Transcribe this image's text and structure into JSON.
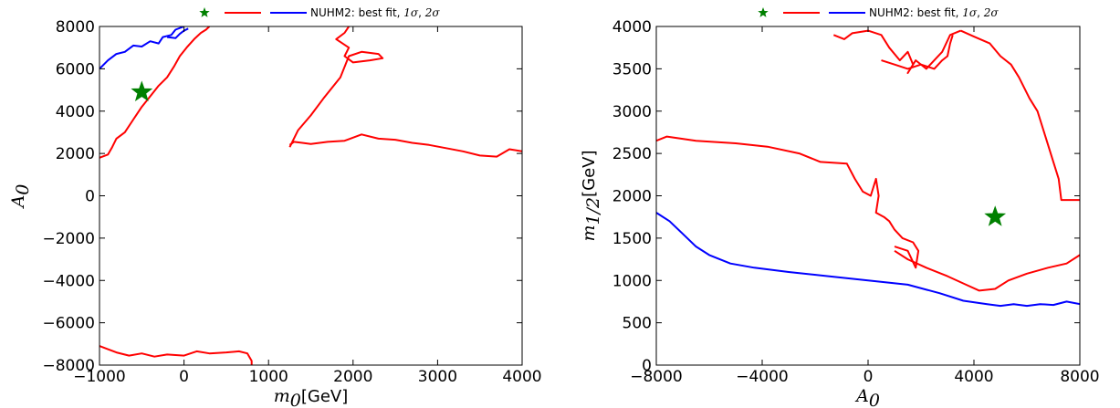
{
  "chart_data": [
    {
      "type": "line",
      "legend": {
        "label": "NUHM2: best fit, ",
        "sig1": "1σ",
        "sep": ", ",
        "sig2": "2σ",
        "placement": "top-center"
      },
      "xlabel": {
        "symbol": "m",
        "sub": "0",
        "unit": "[GeV]"
      },
      "ylabel": {
        "symbol": "A",
        "sub": "0"
      },
      "xlim": [
        -1000,
        4000
      ],
      "ylim": [
        -8000,
        8000
      ],
      "xticks": [
        -1000,
        0,
        1000,
        2000,
        3000,
        4000
      ],
      "yticks": [
        -8000,
        -6000,
        -4000,
        -2000,
        0,
        2000,
        4000,
        6000,
        8000
      ],
      "grid": false,
      "best_fit": {
        "x": -500,
        "y": 4900,
        "color": "#008000"
      },
      "series": [
        {
          "color": "#ff0000",
          "points": [
            [
              -1000,
              1800
            ],
            [
              -900,
              1950
            ],
            [
              -850,
              2300
            ],
            [
              -800,
              2700
            ],
            [
              -700,
              3000
            ],
            [
              -600,
              3600
            ],
            [
              -500,
              4200
            ],
            [
              -400,
              4700
            ],
            [
              -300,
              5200
            ],
            [
              -200,
              5600
            ],
            [
              -120,
              6100
            ],
            [
              -50,
              6600
            ],
            [
              30,
              7000
            ],
            [
              120,
              7400
            ],
            [
              200,
              7700
            ],
            [
              260,
              7850
            ],
            [
              300,
              8000
            ]
          ]
        },
        {
          "color": "#ff0000",
          "points": [
            [
              1250,
              2400
            ],
            [
              1300,
              2550
            ],
            [
              1400,
              2500
            ],
            [
              1500,
              2450
            ],
            [
              1700,
              2550
            ],
            [
              1900,
              2600
            ],
            [
              2100,
              2900
            ],
            [
              2300,
              2700
            ],
            [
              2500,
              2650
            ],
            [
              2700,
              2500
            ],
            [
              2900,
              2400
            ],
            [
              3100,
              2250
            ],
            [
              3300,
              2100
            ],
            [
              3500,
              1900
            ],
            [
              3700,
              1850
            ],
            [
              3850,
              2200
            ],
            [
              4000,
              2100
            ]
          ]
        },
        {
          "color": "#ff0000",
          "points": [
            [
              1250,
              2300
            ],
            [
              1350,
              3100
            ],
            [
              1500,
              3800
            ],
            [
              1650,
              4600
            ],
            [
              1850,
              5600
            ],
            [
              1950,
              6600
            ],
            [
              2100,
              6800
            ],
            [
              2300,
              6700
            ],
            [
              2350,
              6500
            ],
            [
              2200,
              6400
            ],
            [
              2000,
              6300
            ],
            [
              1900,
              6600
            ],
            [
              1950,
              7000
            ],
            [
              1800,
              7400
            ],
            [
              1900,
              7700
            ],
            [
              1950,
              8000
            ]
          ]
        },
        {
          "color": "#ff0000",
          "points": [
            [
              -1000,
              -7100
            ],
            [
              -800,
              -7400
            ],
            [
              -650,
              -7550
            ],
            [
              -500,
              -7450
            ],
            [
              -350,
              -7600
            ],
            [
              -200,
              -7500
            ],
            [
              0,
              -7550
            ],
            [
              150,
              -7350
            ],
            [
              300,
              -7450
            ],
            [
              500,
              -7400
            ],
            [
              650,
              -7350
            ],
            [
              750,
              -7450
            ],
            [
              800,
              -7800
            ],
            [
              800,
              -8000
            ]
          ]
        },
        {
          "color": "#0000ff",
          "points": [
            [
              -1000,
              6000
            ],
            [
              -900,
              6400
            ],
            [
              -800,
              6700
            ],
            [
              -700,
              6800
            ],
            [
              -600,
              7100
            ],
            [
              -500,
              7050
            ],
            [
              -400,
              7300
            ],
            [
              -300,
              7200
            ],
            [
              -250,
              7500
            ],
            [
              -150,
              7600
            ],
            [
              -100,
              7850
            ],
            [
              0,
              8000
            ]
          ]
        },
        {
          "color": "#0000ff",
          "points": [
            [
              -200,
              7500
            ],
            [
              -100,
              7450
            ],
            [
              -50,
              7650
            ],
            [
              0,
              7800
            ],
            [
              50,
              7900
            ]
          ]
        }
      ]
    },
    {
      "type": "line",
      "legend": {
        "label": "NUHM2: best fit, ",
        "sig1": "1σ",
        "sep": ", ",
        "sig2": "2σ",
        "placement": "top-center"
      },
      "xlabel": {
        "symbol": "A",
        "sub": "0",
        "unit": ""
      },
      "ylabel": {
        "symbol": "m",
        "sub": "1/2",
        "unit": "[GeV]"
      },
      "xlim": [
        -8000,
        8000
      ],
      "ylim": [
        0,
        4000
      ],
      "xticks": [
        -8000,
        -4000,
        0,
        4000,
        8000
      ],
      "yticks": [
        0,
        500,
        1000,
        1500,
        2000,
        2500,
        3000,
        3500,
        4000
      ],
      "grid": false,
      "best_fit": {
        "x": 4800,
        "y": 1750,
        "color": "#008000"
      },
      "series": [
        {
          "color": "#ff0000",
          "points": [
            [
              -8000,
              2650
            ],
            [
              -7600,
              2700
            ],
            [
              -6500,
              2650
            ],
            [
              -5000,
              2620
            ],
            [
              -3800,
              2580
            ],
            [
              -2600,
              2500
            ],
            [
              -1800,
              2400
            ],
            [
              -800,
              2380
            ],
            [
              -500,
              2200
            ],
            [
              -200,
              2050
            ],
            [
              100,
              2000
            ],
            [
              300,
              2200
            ],
            [
              400,
              2000
            ],
            [
              300,
              1800
            ],
            [
              600,
              1750
            ],
            [
              800,
              1700
            ],
            [
              1000,
              1600
            ],
            [
              1300,
              1500
            ],
            [
              1700,
              1450
            ],
            [
              1900,
              1350
            ],
            [
              1800,
              1150
            ],
            [
              1500,
              1350
            ],
            [
              1000,
              1400
            ]
          ]
        },
        {
          "color": "#ff0000",
          "points": [
            [
              1000,
              1350
            ],
            [
              1500,
              1250
            ],
            [
              2200,
              1150
            ],
            [
              3000,
              1050
            ],
            [
              3700,
              950
            ],
            [
              4200,
              880
            ],
            [
              4800,
              900
            ],
            [
              5300,
              1000
            ],
            [
              6000,
              1080
            ],
            [
              6800,
              1150
            ],
            [
              7500,
              1200
            ],
            [
              8000,
              1300
            ]
          ]
        },
        {
          "color": "#ff0000",
          "points": [
            [
              -1300,
              3900
            ],
            [
              -900,
              3850
            ],
            [
              -600,
              3920
            ],
            [
              0,
              3950
            ],
            [
              500,
              3900
            ],
            [
              800,
              3750
            ],
            [
              1200,
              3600
            ],
            [
              1500,
              3700
            ],
            [
              1700,
              3550
            ],
            [
              1500,
              3450
            ],
            [
              1800,
              3600
            ],
            [
              2200,
              3500
            ],
            [
              2500,
              3600
            ],
            [
              2800,
              3700
            ],
            [
              3100,
              3900
            ],
            [
              3500,
              3950
            ]
          ]
        },
        {
          "color": "#ff0000",
          "points": [
            [
              500,
              3600
            ],
            [
              1000,
              3550
            ],
            [
              1500,
              3500
            ],
            [
              2000,
              3550
            ],
            [
              2500,
              3500
            ],
            [
              2800,
              3600
            ],
            [
              3000,
              3650
            ],
            [
              3100,
              3800
            ],
            [
              3200,
              3900
            ]
          ]
        },
        {
          "color": "#ff0000",
          "points": [
            [
              3500,
              3950
            ],
            [
              4000,
              3880
            ],
            [
              4600,
              3800
            ],
            [
              5000,
              3650
            ],
            [
              5400,
              3550
            ],
            [
              5700,
              3400
            ],
            [
              6100,
              3150
            ],
            [
              6400,
              3000
            ],
            [
              6700,
              2700
            ],
            [
              7000,
              2400
            ],
            [
              7200,
              2200
            ],
            [
              7300,
              1950
            ],
            [
              7500,
              1950
            ],
            [
              8000,
              1950
            ]
          ]
        },
        {
          "color": "#0000ff",
          "points": [
            [
              -8000,
              1800
            ],
            [
              -7500,
              1700
            ],
            [
              -7000,
              1550
            ],
            [
              -6500,
              1400
            ],
            [
              -6000,
              1300
            ],
            [
              -5200,
              1200
            ],
            [
              -4300,
              1150
            ],
            [
              -3000,
              1100
            ],
            [
              -1500,
              1050
            ],
            [
              0,
              1000
            ],
            [
              1500,
              950
            ],
            [
              2700,
              850
            ],
            [
              3600,
              760
            ],
            [
              4500,
              720
            ],
            [
              5000,
              700
            ],
            [
              5500,
              720
            ],
            [
              6000,
              700
            ],
            [
              6500,
              720
            ],
            [
              7000,
              710
            ],
            [
              7500,
              750
            ],
            [
              8000,
              720
            ]
          ]
        }
      ]
    }
  ]
}
